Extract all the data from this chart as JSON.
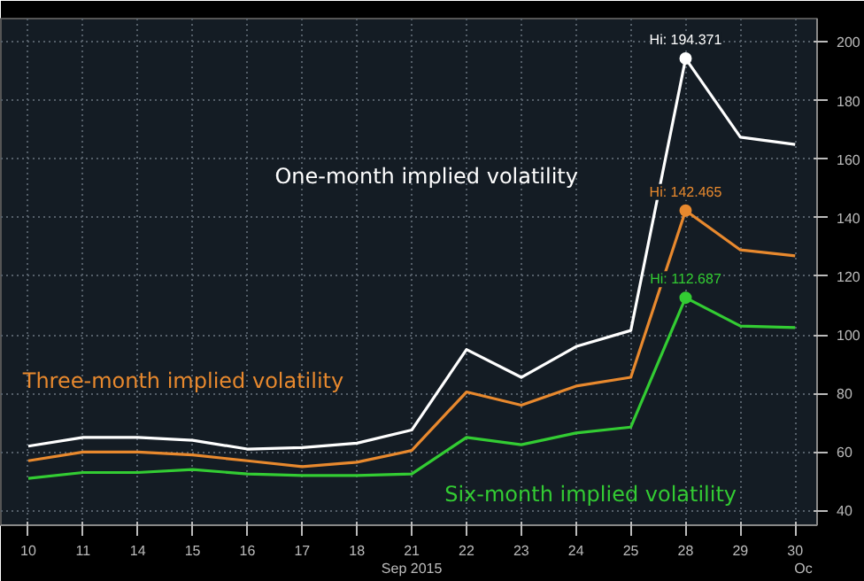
{
  "chart_data": {
    "type": "line",
    "categories": [
      "10",
      "11",
      "14",
      "15",
      "16",
      "17",
      "18",
      "21",
      "22",
      "23",
      "24",
      "25",
      "28",
      "29",
      "30"
    ],
    "xlabel": "Sep 2015",
    "series": [
      {
        "name": "One-month implied volatility",
        "color": "#ffffff",
        "values": [
          62,
          65,
          65,
          64,
          61,
          61.5,
          63,
          67.5,
          95,
          85.5,
          96,
          101.5,
          194.371,
          167.5,
          165
        ]
      },
      {
        "name": "Three-month implied volatility",
        "color": "#e8892e",
        "values": [
          57,
          60,
          60,
          59,
          57,
          55,
          56.5,
          60.5,
          80.5,
          76,
          82.5,
          85.5,
          142.465,
          129,
          127
        ]
      },
      {
        "name": "Six-month implied volatility",
        "color": "#33cc33",
        "values": [
          51,
          53,
          53,
          54,
          52.5,
          52,
          52,
          52.5,
          65,
          62.5,
          66.5,
          68.5,
          112.687,
          103,
          102.5
        ]
      }
    ],
    "annotations": [
      {
        "text": "Hi: 194.371",
        "x": "28",
        "y": 194.371
      },
      {
        "text": "Hi: 142.465",
        "x": "28",
        "y": 142.465
      },
      {
        "text": "Hi: 112.687",
        "x": "28",
        "y": 112.687
      },
      "Oc"
    ],
    "ylim": [
      35,
      208
    ],
    "yticks": [
      40,
      60,
      80,
      100,
      120,
      140,
      160,
      180,
      200
    ],
    "grid": true,
    "marker": "none",
    "line_style": "solid"
  }
}
